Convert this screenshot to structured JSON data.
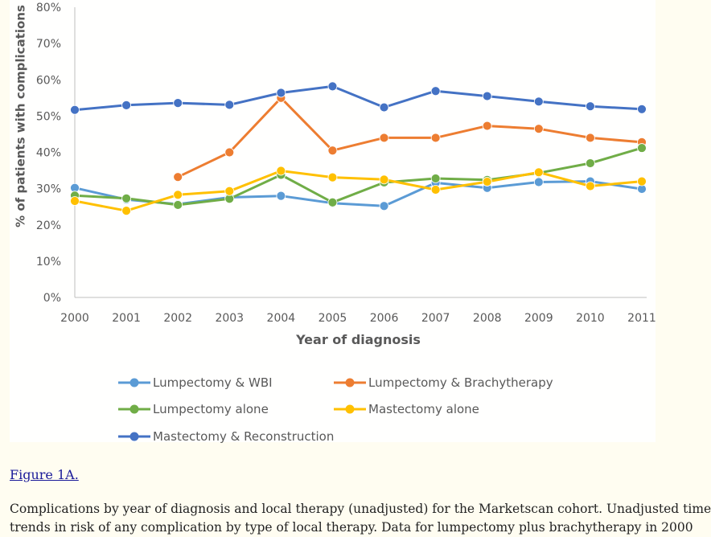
{
  "figure": {
    "link_label": "Figure 1A.",
    "caption_line1": "Complications by year of diagnosis and local therapy (unadjusted) for the Marketscan cohort. Unadjusted time",
    "caption_line2": "trends in risk of any complication by type of local therapy. Data for lumpectomy plus brachytherapy in 2000"
  },
  "chart_data": {
    "type": "line",
    "title": "",
    "xlabel": "Year of diagnosis",
    "ylabel": "% of patients with complications",
    "categories": [
      "2000",
      "2001",
      "2002",
      "2003",
      "2004",
      "2005",
      "2006",
      "2007",
      "2008",
      "2009",
      "2010",
      "2011"
    ],
    "yticks": [
      "0%",
      "10%",
      "20%",
      "30%",
      "40%",
      "50%",
      "60%",
      "70%",
      "80%"
    ],
    "ylim": [
      0,
      80
    ],
    "grid": false,
    "legend_position": "bottom",
    "series": [
      {
        "name": "Lumpectomy & WBI",
        "color": "#5b9bd5",
        "values": [
          30.2,
          27.0,
          25.7,
          27.6,
          28.0,
          26.0,
          25.2,
          31.6,
          30.2,
          31.8,
          32.0,
          29.9
        ]
      },
      {
        "name": "Lumpectomy & Brachytherapy",
        "color": "#ed7d31",
        "values": [
          null,
          null,
          33.2,
          40.0,
          55.0,
          40.5,
          44.0,
          44.0,
          47.3,
          46.5,
          44.0,
          42.8
        ]
      },
      {
        "name": "Lumpectomy alone",
        "color": "#70ad47",
        "values": [
          28.1,
          27.3,
          25.5,
          27.2,
          33.8,
          26.2,
          31.7,
          32.8,
          32.4,
          34.3,
          37.0,
          41.2
        ]
      },
      {
        "name": "Mastectomy alone",
        "color": "#ffc000",
        "values": [
          26.6,
          23.9,
          28.3,
          29.3,
          34.9,
          33.1,
          32.5,
          29.7,
          31.9,
          34.5,
          30.7,
          32.0
        ]
      },
      {
        "name": "Mastectomy & Reconstruction",
        "color": "#4472c4",
        "values": [
          51.7,
          53.0,
          53.6,
          53.1,
          56.4,
          58.2,
          52.4,
          56.9,
          55.5,
          54.0,
          52.7,
          51.9
        ]
      }
    ]
  }
}
